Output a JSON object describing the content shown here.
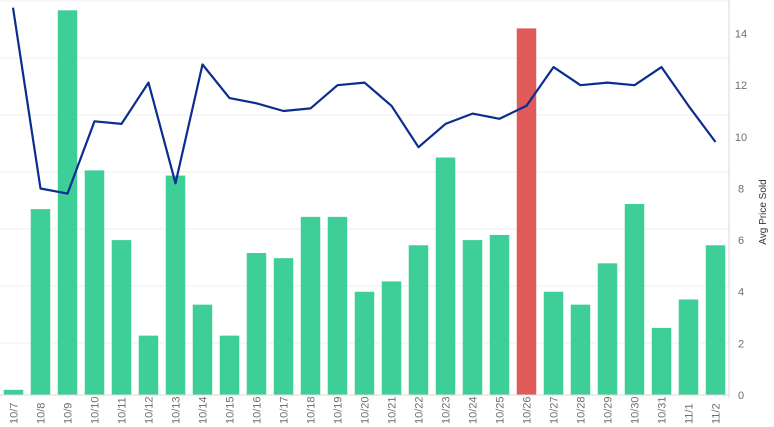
{
  "chart_data": {
    "type": "bar",
    "title": "",
    "xlabel": "",
    "ylabel_right": "Avg Price Sold",
    "categories": [
      "10/7",
      "10/8",
      "10/9",
      "10/10",
      "10/11",
      "10/12",
      "10/13",
      "10/14",
      "10/15",
      "10/16",
      "10/17",
      "10/18",
      "10/19",
      "10/20",
      "10/21",
      "10/22",
      "10/23",
      "10/24",
      "10/25",
      "10/26",
      "10/27",
      "10/28",
      "10/29",
      "10/30",
      "10/31",
      "11/1",
      "11/2"
    ],
    "bar_series": {
      "name": "",
      "values": [
        0.2,
        7.2,
        14.9,
        8.7,
        6.0,
        2.3,
        8.5,
        3.5,
        2.3,
        5.5,
        5.3,
        6.9,
        6.9,
        4.0,
        4.4,
        5.8,
        9.2,
        6.0,
        6.2,
        14.2,
        4.0,
        3.5,
        5.1,
        7.4,
        2.6,
        3.7,
        5.8
      ],
      "color": "#3ecf98",
      "highlight_index": 19,
      "highlight_color": "#e05a5a"
    },
    "line_series": {
      "name": "Avg Price Sold",
      "values": [
        15.0,
        8.0,
        7.8,
        10.6,
        10.5,
        12.1,
        8.2,
        12.8,
        11.5,
        11.3,
        11.0,
        11.1,
        12.0,
        12.1,
        11.2,
        9.6,
        10.5,
        10.9,
        10.7,
        11.2,
        12.7,
        12.0,
        12.1,
        12.0,
        12.7,
        11.2,
        9.8
      ],
      "color": "#0b2d8f"
    },
    "y_right": {
      "min": 0,
      "max": 15.3,
      "ticks": [
        0,
        2,
        4,
        6,
        8,
        10,
        12,
        14
      ]
    },
    "grid": true
  }
}
